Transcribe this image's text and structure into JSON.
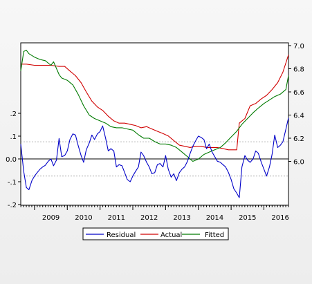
{
  "chart_data": {
    "type": "line",
    "title": "",
    "xlabel": "",
    "x_tick_labels": [
      "2009",
      "2010",
      "2011",
      "2012",
      "2013",
      "2014",
      "2015",
      "2016"
    ],
    "x_range": [
      2008.58,
      2016.75
    ],
    "left_axis": {
      "range": [
        -0.2,
        0.2
      ],
      "ticks": [
        ".2",
        ".1",
        "0.0",
        "-.1",
        "-.2"
      ],
      "dashed_reference_lines": [
        0.075,
        -0.075
      ]
    },
    "right_axis": {
      "range": [
        5.1,
        7.0
      ],
      "ticks": [
        "7.0",
        "6.8",
        "6.6",
        "6.4",
        "6.2",
        "6.0"
      ],
      "tick_values": [
        7.0,
        6.8,
        6.6,
        6.4,
        6.2,
        6.0
      ]
    },
    "legend": {
      "position": "bottom-center"
    },
    "series": [
      {
        "name": "Residual",
        "axis": "left",
        "color": "#0000c8",
        "x": [
          2008.58,
          2008.67,
          2008.75,
          2008.83,
          2008.92,
          2009.0,
          2009.08,
          2009.17,
          2009.25,
          2009.33,
          2009.42,
          2009.5,
          2009.58,
          2009.67,
          2009.75,
          2009.83,
          2009.92,
          2010.0,
          2010.08,
          2010.17,
          2010.25,
          2010.33,
          2010.42,
          2010.5,
          2010.58,
          2010.67,
          2010.75,
          2010.83,
          2010.92,
          2011.0,
          2011.08,
          2011.17,
          2011.25,
          2011.33,
          2011.42,
          2011.5,
          2011.58,
          2011.67,
          2011.75,
          2011.83,
          2011.92,
          2012.0,
          2012.08,
          2012.17,
          2012.25,
          2012.33,
          2012.42,
          2012.5,
          2012.58,
          2012.67,
          2012.75,
          2012.83,
          2012.92,
          2013.0,
          2013.08,
          2013.17,
          2013.25,
          2013.33,
          2013.42,
          2013.5,
          2013.58,
          2013.67,
          2013.75,
          2013.83,
          2013.92,
          2014.0,
          2014.08,
          2014.17,
          2014.25,
          2014.33,
          2014.42,
          2014.5,
          2014.58,
          2014.67,
          2014.75,
          2014.83,
          2014.92,
          2015.0,
          2015.08,
          2015.17,
          2015.25,
          2015.33,
          2015.42,
          2015.5,
          2015.58,
          2015.67,
          2015.75,
          2015.83,
          2015.92,
          2016.0,
          2016.08,
          2016.17,
          2016.25,
          2016.33,
          2016.42,
          2016.5,
          2016.58,
          2016.67,
          2016.75
        ],
        "values": [
          0.065,
          -0.055,
          -0.125,
          -0.135,
          -0.095,
          -0.075,
          -0.06,
          -0.045,
          -0.035,
          -0.028,
          -0.01,
          0.0,
          -0.03,
          -0.005,
          0.09,
          0.01,
          0.015,
          0.035,
          0.085,
          0.11,
          0.105,
          0.06,
          0.015,
          -0.015,
          0.04,
          0.07,
          0.105,
          0.085,
          0.11,
          0.12,
          0.145,
          0.09,
          0.035,
          0.045,
          0.035,
          -0.035,
          -0.025,
          -0.03,
          -0.06,
          -0.09,
          -0.1,
          -0.075,
          -0.055,
          -0.035,
          0.03,
          0.015,
          -0.015,
          -0.035,
          -0.065,
          -0.06,
          -0.025,
          -0.02,
          -0.035,
          0.015,
          -0.045,
          -0.08,
          -0.065,
          -0.095,
          -0.06,
          -0.045,
          -0.035,
          -0.01,
          0.025,
          0.055,
          0.08,
          0.1,
          0.095,
          0.085,
          0.045,
          0.065,
          0.03,
          0.01,
          -0.01,
          -0.015,
          -0.025,
          -0.035,
          -0.06,
          -0.09,
          -0.13,
          -0.15,
          -0.17,
          -0.035,
          0.015,
          -0.005,
          -0.015,
          0.0,
          0.035,
          0.025,
          -0.015,
          -0.045,
          -0.075,
          -0.035,
          0.02,
          0.105,
          0.05,
          0.06,
          0.075,
          0.13,
          0.18
        ]
      },
      {
        "name": "Actual",
        "axis": "right",
        "color": "#d00000",
        "x": [
          2008.58,
          2008.75,
          2009.0,
          2009.25,
          2009.5,
          2009.75,
          2009.92,
          2010.08,
          2010.25,
          2010.42,
          2010.58,
          2010.75,
          2010.92,
          2011.08,
          2011.25,
          2011.42,
          2011.58,
          2011.75,
          2011.92,
          2012.08,
          2012.25,
          2012.42,
          2012.58,
          2012.75,
          2012.92,
          2013.08,
          2013.25,
          2013.42,
          2013.58,
          2013.75,
          2013.92,
          2014.08,
          2014.25,
          2014.42,
          2014.58,
          2014.75,
          2014.92,
          2015.0,
          2015.08,
          2015.17,
          2015.25,
          2015.42,
          2015.58,
          2015.75,
          2015.92,
          2016.08,
          2016.25,
          2016.42,
          2016.58,
          2016.75
        ],
        "values": [
          6.84,
          6.84,
          6.83,
          6.83,
          6.83,
          6.82,
          6.82,
          6.78,
          6.74,
          6.68,
          6.6,
          6.52,
          6.47,
          6.44,
          6.39,
          6.35,
          6.33,
          6.33,
          6.32,
          6.31,
          6.29,
          6.3,
          6.28,
          6.26,
          6.24,
          6.22,
          6.18,
          6.14,
          6.13,
          6.12,
          6.13,
          6.13,
          6.12,
          6.12,
          6.12,
          6.11,
          6.1,
          6.1,
          6.1,
          6.1,
          6.33,
          6.37,
          6.48,
          6.5,
          6.54,
          6.57,
          6.62,
          6.68,
          6.77,
          6.92
        ]
      },
      {
        "name": "Fitted",
        "axis": "right",
        "color": "#007a00",
        "x": [
          2008.58,
          2008.67,
          2008.75,
          2008.83,
          2009.0,
          2009.17,
          2009.33,
          2009.5,
          2009.58,
          2009.75,
          2009.83,
          2010.0,
          2010.17,
          2010.33,
          2010.5,
          2010.67,
          2010.83,
          2011.0,
          2011.17,
          2011.33,
          2011.5,
          2011.67,
          2011.83,
          2012.0,
          2012.17,
          2012.33,
          2012.5,
          2012.67,
          2012.83,
          2013.0,
          2013.17,
          2013.33,
          2013.5,
          2013.67,
          2013.83,
          2014.0,
          2014.17,
          2014.33,
          2014.5,
          2014.67,
          2014.83,
          2015.0,
          2015.17,
          2015.33,
          2015.5,
          2015.67,
          2015.83,
          2016.0,
          2016.17,
          2016.33,
          2016.5,
          2016.67,
          2016.75
        ],
        "values": [
          6.78,
          6.95,
          6.96,
          6.93,
          6.9,
          6.88,
          6.87,
          6.83,
          6.86,
          6.75,
          6.72,
          6.7,
          6.66,
          6.58,
          6.48,
          6.4,
          6.37,
          6.35,
          6.33,
          6.3,
          6.29,
          6.29,
          6.28,
          6.27,
          6.23,
          6.2,
          6.2,
          6.17,
          6.15,
          6.15,
          6.14,
          6.12,
          6.08,
          6.04,
          6.0,
          6.02,
          6.06,
          6.08,
          6.1,
          6.12,
          6.16,
          6.21,
          6.26,
          6.32,
          6.37,
          6.42,
          6.46,
          6.5,
          6.53,
          6.56,
          6.58,
          6.62,
          6.74
        ]
      }
    ]
  }
}
